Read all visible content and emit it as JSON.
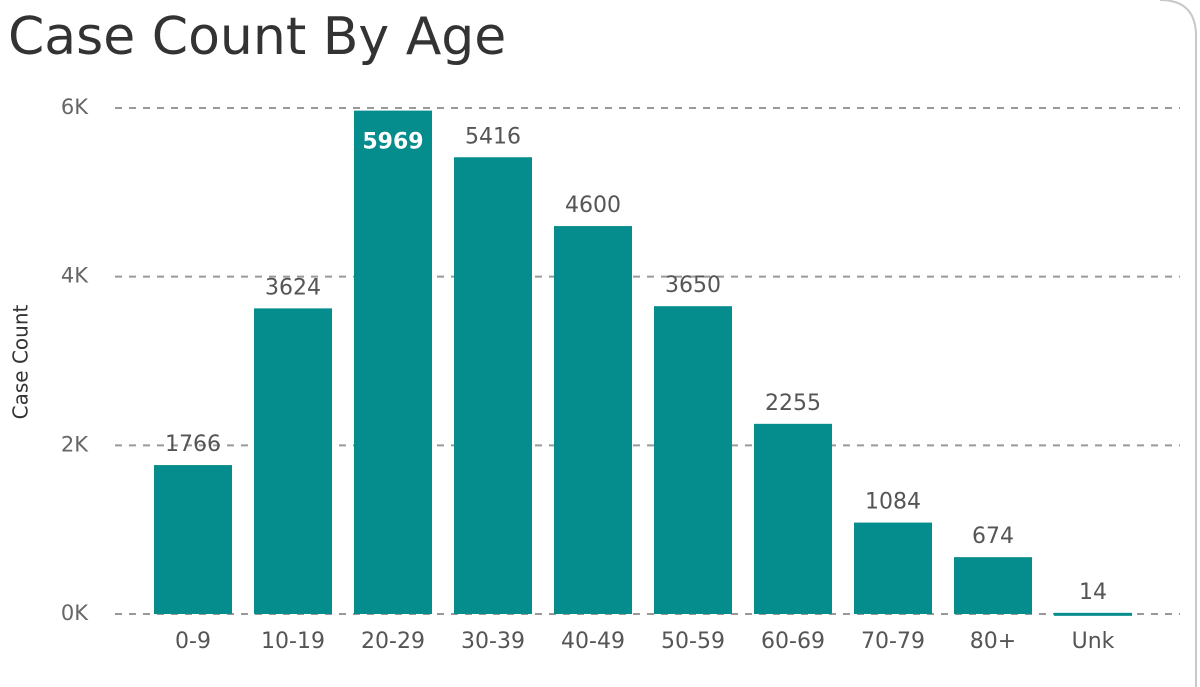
{
  "chart_data": {
    "type": "bar",
    "title": "Case Count By Age",
    "y_label": "Case Count",
    "categories": [
      "0-9",
      "10-19",
      "20-29",
      "30-39",
      "40-49",
      "50-59",
      "60-69",
      "70-79",
      "80+",
      "Unk"
    ],
    "values": [
      1766,
      3624,
      5969,
      5416,
      4600,
      3650,
      2255,
      1084,
      674,
      14
    ],
    "color": "#058c8c",
    "ylim": [
      0,
      6000
    ],
    "yticks": [
      {
        "value": 0,
        "label": "0K"
      },
      {
        "value": 2000,
        "label": "2K"
      },
      {
        "value": 4000,
        "label": "4K"
      },
      {
        "value": 6000,
        "label": "6K"
      }
    ],
    "grid": true
  }
}
